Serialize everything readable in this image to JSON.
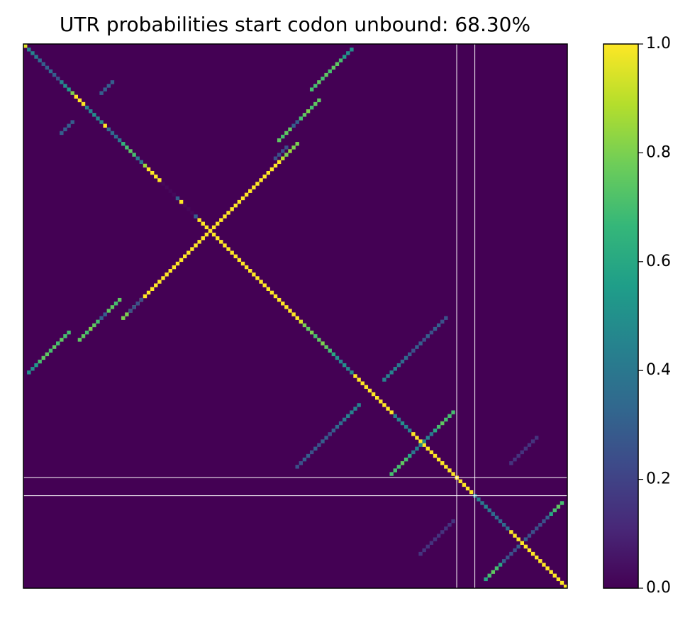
{
  "chart_data": {
    "type": "heatmap",
    "title": "UTR probabilities start codon unbound: 68.30%",
    "colormap": "viridis",
    "xlim": [
      -0.5,
      149.5
    ],
    "ylim": [
      149.5,
      -0.5
    ],
    "clim": [
      0,
      1
    ],
    "cticks": [
      {
        "value": 0,
        "label": "0.0"
      },
      0.2,
      0.4,
      0.6,
      0.8,
      {
        "value": 1,
        "label": "1.0"
      }
    ],
    "highlight_lines": [
      119,
      124
    ],
    "highlight_color": "#ffffff",
    "stems": [
      {
        "start": [
          0,
          0
        ],
        "step": [
          1,
          1
        ],
        "values": [
          0.95,
          0.45,
          0.45,
          0.4,
          0.35,
          0.3,
          0.3,
          0.35,
          0.3,
          0.25,
          0.45,
          0.5,
          0.55,
          0.8,
          1,
          1,
          1,
          0.45,
          0.45,
          0.5,
          0.45,
          0.5,
          1,
          0.35,
          0.35,
          0.35,
          0.4,
          0.65,
          0.7,
          0.75,
          0.7,
          0.4,
          0.4,
          0.85,
          1,
          1,
          1,
          1,
          0.02,
          0.02,
          0.02,
          0.02,
          0.3,
          1,
          0.02,
          0.02,
          0.02,
          0.3,
          1,
          1,
          1,
          1,
          1,
          1,
          1,
          1,
          1,
          1,
          1,
          1,
          1,
          1,
          1,
          1,
          1,
          1,
          1,
          1,
          1,
          1,
          1,
          1,
          1,
          1,
          1,
          1,
          0.95,
          0.8,
          0.75,
          0.8,
          0.7,
          0.75,
          0.8,
          0.75,
          0.7,
          0.6,
          0.5,
          0.45,
          0.5,
          0.45,
          0.5,
          1,
          1,
          1,
          1,
          1,
          1,
          1,
          1,
          1,
          1,
          1,
          0.45,
          0.45,
          0.5,
          0.45,
          0.45,
          1,
          1,
          1,
          1,
          1,
          1,
          1,
          1,
          1,
          1,
          1,
          1,
          1,
          1,
          1,
          1,
          1,
          0.45,
          0.45,
          0.4,
          0.45,
          0.4,
          0.35,
          0.35,
          0.35,
          0.35,
          0.35,
          1,
          1,
          1,
          1,
          1,
          1,
          1,
          1,
          1,
          1,
          1,
          1,
          1,
          1,
          1,
          1
        ]
      },
      {
        "start": [
          1,
          90
        ],
        "step": [
          1,
          -1
        ],
        "values": [
          0.5,
          0.5,
          0.55,
          0.7,
          0.75,
          0.75,
          0.7,
          0.75,
          0.7,
          0.75,
          0.7,
          0.7
        ]
      },
      {
        "start": [
          79,
          12
        ],
        "step": [
          1,
          -1
        ],
        "values": [
          0.7,
          0.7,
          0.75,
          0.7,
          0.75,
          0.7,
          0.75,
          0.75,
          0.7,
          0.55,
          0.5,
          0.5
        ]
      },
      {
        "start": [
          15,
          81
        ],
        "step": [
          1,
          -1
        ],
        "values": [
          0.75,
          0.75,
          0.7,
          0.8,
          0.75,
          0.7,
          0.3,
          0.3,
          0.75,
          0.75,
          0.7,
          0.75
        ]
      },
      {
        "start": [
          70,
          26
        ],
        "step": [
          1,
          -1
        ],
        "values": [
          0.75,
          0.7,
          0.75,
          0.75,
          0.3,
          0.3,
          0.7,
          0.75,
          0.8,
          0.7,
          0.75,
          0.75
        ]
      },
      {
        "start": [
          27,
          75
        ],
        "step": [
          1,
          -1
        ],
        "values": [
          0.8,
          0.8,
          0.85,
          0.8,
          0.9,
          1,
          1,
          1,
          1,
          1,
          1,
          1,
          1,
          1,
          1,
          1,
          1,
          1,
          1,
          1,
          1,
          1,
          1,
          1,
          1,
          1,
          1,
          1,
          1,
          1,
          1,
          1,
          1,
          1,
          1,
          1,
          1,
          1,
          1,
          1,
          1,
          1,
          1,
          1,
          0.9,
          0.85,
          0.8,
          0.8,
          0.8
        ]
      },
      {
        "start": [
          10,
          24
        ],
        "step": [
          1,
          -1
        ],
        "values": [
          0.3,
          0.3,
          0.3,
          0.3
        ]
      },
      {
        "start": [
          21,
          13
        ],
        "step": [
          1,
          -1
        ],
        "values": [
          0.3,
          0.3,
          0.3,
          0.3
        ]
      },
      {
        "start": [
          28,
          72
        ],
        "step": [
          1,
          -1
        ],
        "values": [
          0.25,
          0.25,
          0.25,
          0.25
        ]
      },
      {
        "start": [
          70,
          32
        ],
        "step": [
          1,
          -1
        ],
        "values": [
          0.25,
          0.25,
          0.25,
          0.25
        ]
      },
      {
        "start": [
          75,
          116
        ],
        "step": [
          1,
          -1
        ],
        "values": [
          0.25,
          0.25,
          0.3,
          0.3,
          0.25,
          0.3,
          0.25,
          0.3,
          0.3,
          0.25,
          0.3,
          0.35,
          0.35,
          0.4,
          0.45,
          0.45,
          0.45,
          0.45
        ]
      },
      {
        "start": [
          99,
          92
        ],
        "step": [
          1,
          -1
        ],
        "values": [
          0.45,
          0.45,
          0.45,
          0.45,
          0.4,
          0.35,
          0.35,
          0.3,
          0.25,
          0.3,
          0.3,
          0.25,
          0.3,
          0.25,
          0.3,
          0.3,
          0.25,
          0.25
        ]
      },
      {
        "start": [
          101,
          118
        ],
        "step": [
          1,
          -1
        ],
        "values": [
          0.7,
          0.7,
          0.7,
          0.75,
          0.7,
          0.6,
          0.4,
          0.45,
          0.45,
          0.45,
          0.45,
          0.4,
          0.6,
          0.7,
          0.75,
          0.7,
          0.7,
          0.7
        ]
      },
      {
        "start": [
          126,
          148
        ],
        "step": [
          1,
          -1
        ],
        "values": [
          0.7,
          0.75,
          0.7,
          0.6,
          0.3,
          0.25,
          0.25,
          0.25,
          0.25,
          0.25,
          0.3,
          1,
          0.3,
          0.25,
          0.25,
          0.25,
          0.3,
          0.6,
          0.7,
          0.75,
          0.7,
          0.6
        ]
      },
      {
        "start": [
          131,
          118
        ],
        "step": [
          1,
          -1
        ],
        "values": [
          0.15,
          0.15,
          0.15,
          0.15,
          0.15,
          0.15,
          0.15,
          0.15,
          0.15,
          0.15
        ]
      },
      {
        "start": [
          108,
          141
        ],
        "step": [
          1,
          -1
        ],
        "values": [
          0.15,
          0.15,
          0.15,
          0.15,
          0.15,
          0.15,
          0.15,
          0.15
        ]
      }
    ]
  }
}
